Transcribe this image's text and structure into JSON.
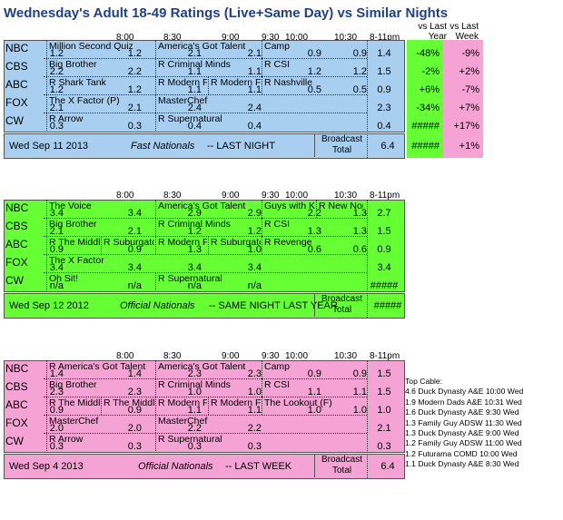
{
  "title": "Wednesday's Adult 18-49 Ratings (Live+Same Day) vs Similar Nights",
  "col_headers": [
    "8:00",
    "8:30",
    "9:00",
    "9:30",
    "10:00",
    "10:30",
    "8-11pm"
  ],
  "compare_headers": {
    "last_year": "vs Last Year",
    "last_week": "vs Last Week"
  },
  "colors": {
    "blue": "#a9cff0",
    "green": "#66ff33",
    "pink": "#f5a3d4"
  },
  "panels": [
    {
      "name": "tonight",
      "networks": [
        "NBC",
        "CBS",
        "ABC",
        "FOX",
        "CW"
      ],
      "rows": [
        {
          "shows": [
            "Million Second Quiz",
            "America's Got Talent",
            "Camp"
          ],
          "vals": [
            "1.2",
            "1.2",
            "2.1",
            "2.1",
            "0.9",
            "0.9"
          ],
          "total": "1.4",
          "ly": "-48%",
          "lw": "-9%"
        },
        {
          "shows": [
            "Big Brother",
            "R Criminal Minds",
            "R CSI"
          ],
          "vals": [
            "2.2",
            "2.2",
            "1.1",
            "1.1",
            "1.2",
            "1.2"
          ],
          "total": "1.5",
          "ly": "-2%",
          "lw": "+2%"
        },
        {
          "shows": [
            "R Shark Tank",
            "R Modern Far",
            "R Modern Far",
            "R Nashville"
          ],
          "vals": [
            "1.2",
            "1.2",
            "1.1",
            "1.1",
            "0.5",
            "0.5"
          ],
          "total": "0.9",
          "ly": "+6%",
          "lw": "-7%"
        },
        {
          "shows": [
            "The X Factor (P)",
            "MasterChef"
          ],
          "vals": [
            "2.1",
            "2.1",
            "2.4",
            "2.4"
          ],
          "total": "2.3",
          "ly": "-34%",
          "lw": "+7%"
        },
        {
          "shows": [
            "R Arrow",
            "R Supernatural"
          ],
          "vals": [
            "0.3",
            "0.3",
            "0.4",
            "0.4"
          ],
          "total": "0.4",
          "ly": "#####",
          "lw": "+17%"
        }
      ],
      "footer_date": "Wed Sep 11 2013",
      "footer_kind": "Fast Nationals",
      "footer_note": "-- LAST NIGHT",
      "broadcast_label": "Broadcast",
      "total_label": "Total",
      "broadcast_total": "6.4",
      "broadcast_ly": "#####",
      "broadcast_lw": "+1%"
    },
    {
      "name": "last_year",
      "networks": [
        "NBC",
        "CBS",
        "ABC",
        "FOX",
        "CW"
      ],
      "rows": [
        {
          "shows": [
            "The Voice",
            "America's Got Talent",
            "Guys with Kic",
            "R New Normal"
          ],
          "vals": [
            "3.4",
            "3.4",
            "2.9",
            "2.9",
            "2.2",
            "1.3"
          ],
          "total": "2.7"
        },
        {
          "shows": [
            "Big Brother",
            "R Criminal Minds",
            "R CSI"
          ],
          "vals": [
            "2.1",
            "2.1",
            "1.2",
            "1.2",
            "1.3",
            "1.3"
          ],
          "total": "1.5"
        },
        {
          "shows": [
            "R The Middle",
            "R Suburgator",
            "R Modern Far",
            "R Suburgator",
            "R Revenge"
          ],
          "vals": [
            "0.9",
            "0.9",
            "1.3",
            "1.0",
            "0.6",
            "0.6"
          ],
          "total": "0.9"
        },
        {
          "shows": [
            "The X Factor"
          ],
          "vals": [
            "3.4",
            "3.4",
            "3.4",
            "3.4"
          ],
          "total": "3.4"
        },
        {
          "shows": [
            "Oh Sit!",
            "R Supernatural"
          ],
          "vals": [
            "n/a",
            "n/a",
            "n/a",
            "n/a"
          ],
          "total": "#####"
        }
      ],
      "footer_date": "Wed Sep 12 2012",
      "footer_kind": "Official Nationals",
      "footer_note": "-- SAME NIGHT LAST YEAR",
      "broadcast_label": "Broadcast",
      "total_label": "Total",
      "broadcast_total": "#####"
    },
    {
      "name": "last_week",
      "networks": [
        "NBC",
        "CBS",
        "ABC",
        "FOX",
        "CW"
      ],
      "rows": [
        {
          "shows": [
            "R America's Got Talent",
            "America's Got Talent",
            "Camp"
          ],
          "vals": [
            "1.4",
            "1.4",
            "2.3",
            "2.3",
            "0.9",
            "0.9"
          ],
          "total": "1.5"
        },
        {
          "shows": [
            "Big Brother",
            "R Criminal Minds",
            "R CSI"
          ],
          "vals": [
            "2.3",
            "2.3",
            "1.0",
            "1.0",
            "1.1",
            "1.1"
          ],
          "total": "1.5"
        },
        {
          "shows": [
            "R The Middle",
            "R The Middle",
            "R Modern Far",
            "R Modern Far",
            "The Lookout (F)"
          ],
          "vals": [
            "0.9",
            "0.9",
            "1.1",
            "1.1",
            "1.0",
            "1.0"
          ],
          "total": "1.0"
        },
        {
          "shows": [
            "MasterChef",
            "MasterChef"
          ],
          "vals": [
            "2.0",
            "2.0",
            "2.2",
            "2.2"
          ],
          "total": "2.1"
        },
        {
          "shows": [
            "R Arrow",
            "R Supernatural"
          ],
          "vals": [
            "0.3",
            "0.3",
            "0.3",
            "0.3"
          ],
          "total": "0.3"
        }
      ],
      "footer_date": "Wed Sep 4 2013",
      "footer_kind": "Official Nationals",
      "footer_note": "-- LAST WEEK",
      "broadcast_label": "Broadcast",
      "total_label": "Total",
      "broadcast_total": "6.4"
    }
  ],
  "top_cable": {
    "heading": "Top Cable:",
    "items": [
      "4.6 Duck Dynasty A&E 10:00 Wed",
      "1.9 Modern Dads A&E 10:31 Wed",
      "1.6 Duck Dynasty A&E 9:30 Wed",
      "1.3 Family Guy ADSW 11:30 Wed",
      "1.3 Duck Dynasty A&E 9:00 Wed",
      "1.2 Family Guy ADSW 11:00 Wed",
      "1.2 Futurama COMD 10:00 Wed",
      "1.1 Duck Dynasty A&E 8:30 Wed"
    ]
  }
}
